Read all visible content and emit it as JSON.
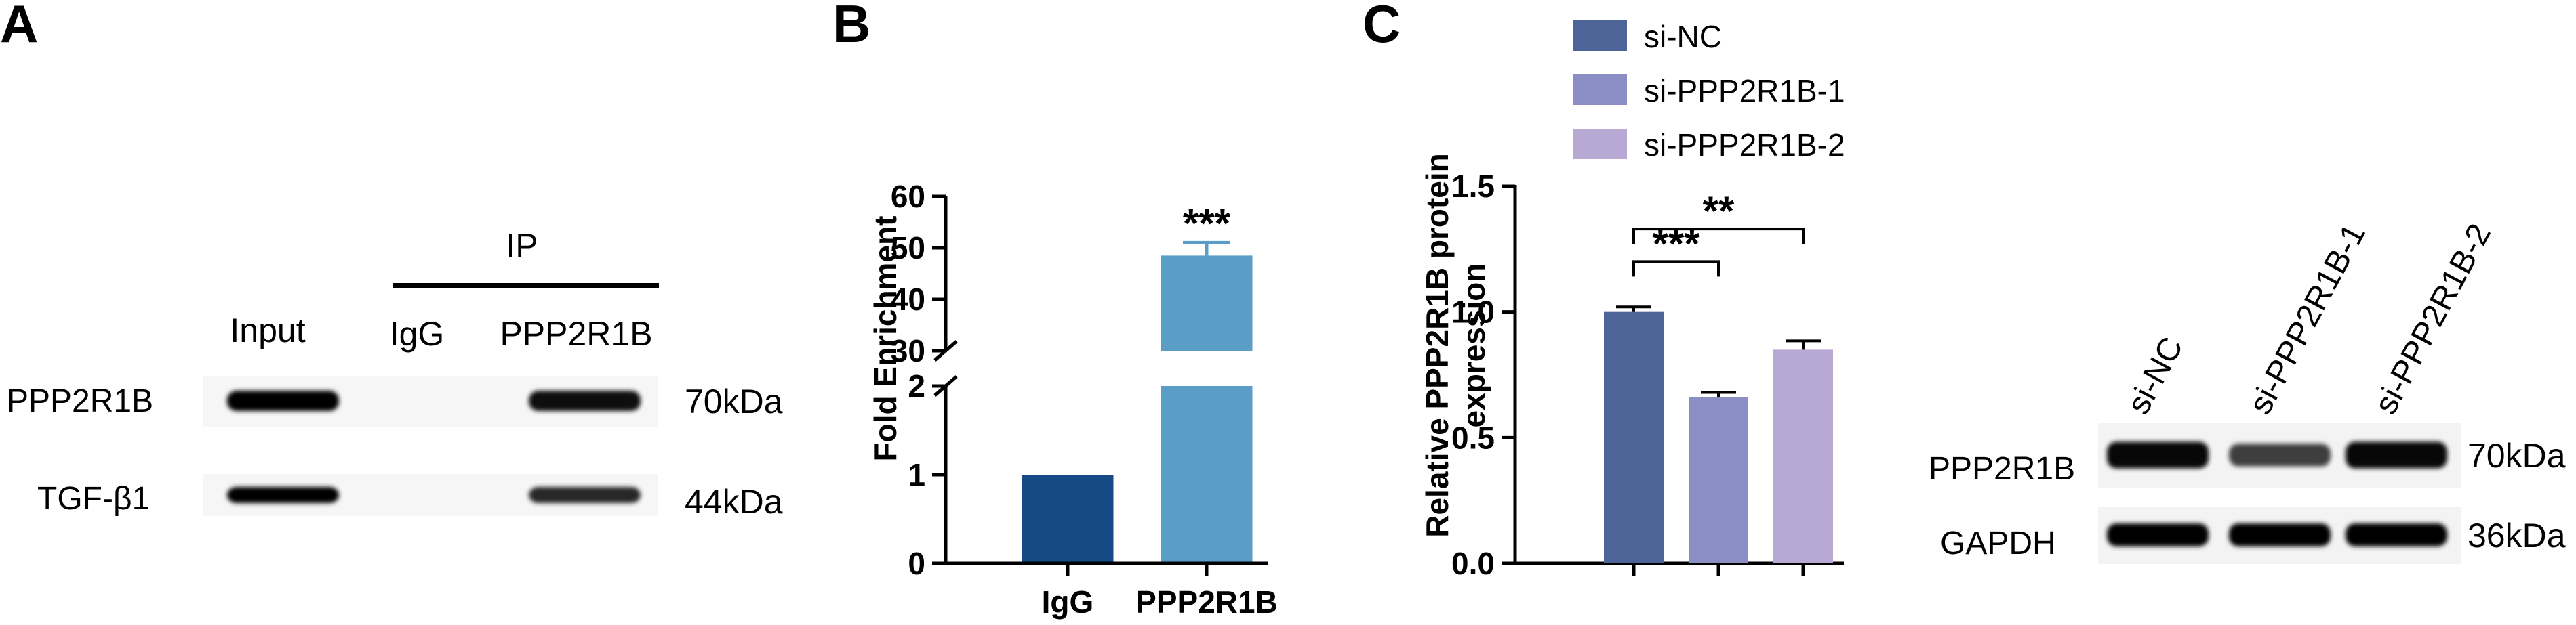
{
  "panels": {
    "A": {
      "letter": "A",
      "ip_header": "IP",
      "lane_labels": [
        "Input",
        "IgG",
        "PPP2R1B"
      ],
      "row_labels": [
        "PPP2R1B",
        "TGF-β1"
      ],
      "mw_labels": [
        "70kDa",
        "44kDa"
      ],
      "band_intensity": [
        [
          1.0,
          0.0,
          0.9
        ],
        [
          1.0,
          0.0,
          0.75
        ]
      ]
    },
    "B": {
      "letter": "B"
    },
    "C": {
      "letter": "C",
      "blot_lane_labels": [
        "si-NC",
        "si-PPP2R1B-1",
        "si-PPP2R1B-2"
      ],
      "blot_row_labels": [
        "PPP2R1B",
        "GAPDH"
      ],
      "blot_mw_labels": [
        "70kDa",
        "36kDa"
      ],
      "band_intensity": [
        [
          0.95,
          0.6,
          0.95
        ],
        [
          1.0,
          1.0,
          1.0
        ]
      ]
    }
  },
  "chart_data": [
    {
      "id": "panel-B",
      "type": "bar",
      "ylabel": "Fold Enrichment",
      "categories": [
        "IgG",
        "PPP2R1B"
      ],
      "values": [
        1,
        48.5
      ],
      "errors": [
        0,
        2.5
      ],
      "colors": [
        "#154a84",
        "#5a9ec8"
      ],
      "significance": [
        "",
        "***"
      ],
      "axis_break": {
        "lower": [
          0,
          2
        ],
        "upper": [
          30,
          60
        ]
      },
      "ytick_labels": [
        "0",
        "1",
        "2",
        "30",
        "40",
        "50",
        "60"
      ]
    },
    {
      "id": "panel-C",
      "type": "bar",
      "ylabel": "Relative PPP2R1B protein expression",
      "ylabel_lines": [
        "Relative PPP2R1B protein",
        "expression"
      ],
      "categories": [
        "si-NC",
        "si-PPP2R1B-1",
        "si-PPP2R1B-2"
      ],
      "values": [
        1.0,
        0.66,
        0.85
      ],
      "errors": [
        0.02,
        0.02,
        0.035
      ],
      "colors": [
        "#4d6499",
        "#8b8dc5",
        "#b8a8d4"
      ],
      "ylim": [
        0,
        1.5
      ],
      "yticks": [
        0.0,
        0.5,
        1.0,
        1.5
      ],
      "ytick_labels": [
        "0.0",
        "0.5",
        "1.0",
        "1.5"
      ],
      "legend": [
        "si-NC",
        "si-PPP2R1B-1",
        "si-PPP2R1B-2"
      ],
      "comparisons": [
        {
          "from": 0,
          "to": 1,
          "label": "***"
        },
        {
          "from": 0,
          "to": 2,
          "label": "**"
        }
      ]
    }
  ]
}
